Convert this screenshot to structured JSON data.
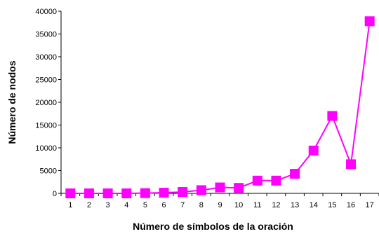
{
  "chart_data": {
    "type": "line",
    "title": "",
    "xlabel": "Número de símbolos de la oración",
    "ylabel": "Número de nodos",
    "x": [
      "1",
      "2",
      "3",
      "4",
      "5",
      "6",
      "7",
      "8",
      "9",
      "10",
      "11",
      "12",
      "13",
      "14",
      "15",
      "16",
      "17"
    ],
    "series": [
      {
        "values": [
          0,
          0,
          0,
          0,
          50,
          150,
          300,
          700,
          1300,
          1200,
          2800,
          2800,
          4300,
          9400,
          17000,
          6400,
          37800
        ],
        "color": "#ff00ff",
        "marker": "square"
      }
    ],
    "ylim": [
      0,
      40000
    ],
    "yticks": [
      0,
      5000,
      10000,
      15000,
      20000,
      25000,
      30000,
      35000,
      40000
    ],
    "grid": false,
    "legend": "none"
  }
}
